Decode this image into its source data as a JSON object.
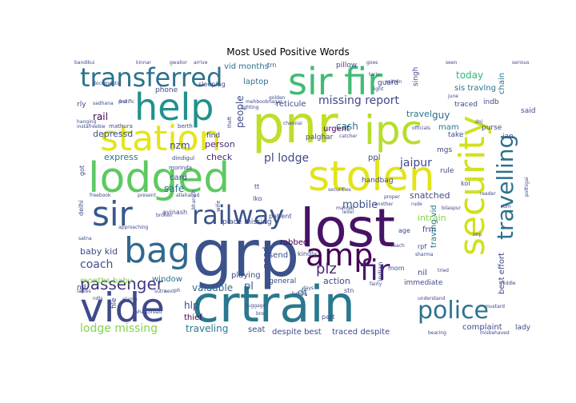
{
  "chart_data": {
    "type": "wordcloud",
    "title": "Most Used Positive Words",
    "background": "#ffffff",
    "colormap": "viridis",
    "words": [
      {
        "text": "grp",
        "size": 80,
        "color": "#3b528b"
      },
      {
        "text": "lost",
        "size": 66,
        "color": "#471365"
      },
      {
        "text": "pnr",
        "size": 64,
        "color": "#bddf26"
      },
      {
        "text": "crtrain",
        "size": 62,
        "color": "#2a788e"
      },
      {
        "text": "lodged",
        "size": 52,
        "color": "#5ec962"
      },
      {
        "text": "stolen",
        "size": 52,
        "color": "#e2e418"
      },
      {
        "text": "vide",
        "size": 50,
        "color": "#3e4a89"
      },
      {
        "text": "ipc",
        "size": 50,
        "color": "#b5de2b"
      },
      {
        "text": "help",
        "size": 46,
        "color": "#21918c"
      },
      {
        "text": "sir fir",
        "size": 46,
        "color": "#3fbc73"
      },
      {
        "text": "station",
        "size": 44,
        "color": "#e5e419"
      },
      {
        "text": "security",
        "size": 44,
        "color": "#d0e11c"
      },
      {
        "text": "bag",
        "size": 44,
        "color": "#31688e"
      },
      {
        "text": "sir",
        "size": 42,
        "color": "#38588c"
      },
      {
        "text": "amp",
        "size": 38,
        "color": "#440154"
      },
      {
        "text": "fir",
        "size": 36,
        "color": "#481a6c"
      },
      {
        "text": "transferred",
        "size": 32,
        "color": "#2c728e"
      },
      {
        "text": "railway",
        "size": 32,
        "color": "#3b528b"
      },
      {
        "text": "police",
        "size": 30,
        "color": "#2c728e"
      },
      {
        "text": "travelling",
        "size": 28,
        "color": "#2d708e"
      },
      {
        "text": "passenger",
        "size": 20,
        "color": "#453781"
      },
      {
        "text": "plz",
        "size": 18,
        "color": "#482878"
      },
      {
        "text": "missing report",
        "size": 14,
        "color": "#404688"
      },
      {
        "text": "coach",
        "size": 14,
        "color": "#3b528b"
      },
      {
        "text": "pl lodge",
        "size": 14,
        "color": "#3e4a89"
      },
      {
        "text": "jaipur",
        "size": 14,
        "color": "#3e4a89"
      },
      {
        "text": "mobile",
        "size": 13,
        "color": "#3b528b"
      },
      {
        "text": "lodge missing",
        "size": 14,
        "color": "#84d44b"
      },
      {
        "text": "today",
        "size": 12,
        "color": "#35b779"
      },
      {
        "text": "valuable",
        "size": 12,
        "color": "#31688e"
      },
      {
        "text": "hlp",
        "size": 12,
        "color": "#3e4a89"
      },
      {
        "text": "pl",
        "size": 13,
        "color": "#38588c"
      },
      {
        "text": "traveling",
        "size": 12,
        "color": "#2a788e"
      },
      {
        "text": "vid months",
        "size": 10,
        "color": "#2c728e"
      },
      {
        "text": "laptop",
        "size": 10,
        "color": "#2c728e"
      },
      {
        "text": "reticule",
        "size": 10,
        "color": "#3e4a89"
      },
      {
        "text": "people",
        "size": 12,
        "color": "#3e4a89"
      },
      {
        "text": "rail",
        "size": 12,
        "color": "#440154"
      },
      {
        "text": "cash",
        "size": 12,
        "color": "#2a788e"
      },
      {
        "text": "travel",
        "size": 11,
        "color": "#2c728e"
      },
      {
        "text": "guy",
        "size": 12,
        "color": "#31688e"
      },
      {
        "text": "mam",
        "size": 10,
        "color": "#2a788e"
      },
      {
        "text": "nzm",
        "size": 12,
        "color": "#3e4a89"
      },
      {
        "text": "express",
        "size": 11,
        "color": "#2c728e"
      },
      {
        "text": "depressd",
        "size": 11,
        "color": "#3b528b"
      },
      {
        "text": "person",
        "size": 11,
        "color": "#482878"
      },
      {
        "text": "check",
        "size": 11,
        "color": "#482878"
      },
      {
        "text": "card",
        "size": 10,
        "color": "#3b528b"
      },
      {
        "text": "safe",
        "size": 12,
        "color": "#2c728e"
      },
      {
        "text": "baby kid",
        "size": 11,
        "color": "#3e4a89"
      },
      {
        "text": "months baby",
        "size": 10,
        "color": "#84d44b"
      },
      {
        "text": "window",
        "size": 10,
        "color": "#2c728e"
      },
      {
        "text": "need",
        "size": 11,
        "color": "#3e4a89"
      },
      {
        "text": "send",
        "size": 10,
        "color": "#3e4a89"
      },
      {
        "text": "robbed",
        "size": 10,
        "color": "#440154"
      },
      {
        "text": "intrain",
        "size": 11,
        "color": "#84d44b"
      },
      {
        "text": "frm",
        "size": 10,
        "color": "#3e4a89"
      },
      {
        "text": "snatched",
        "size": 11,
        "color": "#3e4a89"
      },
      {
        "text": "dt",
        "size": 12,
        "color": "#2c728e"
      },
      {
        "text": "action",
        "size": 11,
        "color": "#3e4a89"
      },
      {
        "text": "seat",
        "size": 10,
        "color": "#3e4a89"
      },
      {
        "text": "despite best",
        "size": 10,
        "color": "#3e4a89"
      },
      {
        "text": "traced despite",
        "size": 10,
        "color": "#3e4a89"
      },
      {
        "text": "complaint",
        "size": 10,
        "color": "#3e4a89"
      },
      {
        "text": "best effort",
        "size": 10,
        "color": "#3e4a89"
      },
      {
        "text": "playing",
        "size": 10,
        "color": "#3e4a89"
      },
      {
        "text": "thief",
        "size": 10,
        "color": "#440154"
      },
      {
        "text": "sis travlng",
        "size": 10,
        "color": "#2c728e"
      },
      {
        "text": "chain",
        "size": 10,
        "color": "#2c728e"
      },
      {
        "text": "urgent",
        "size": 10,
        "color": "#440154"
      },
      {
        "text": "palghar",
        "size": 9,
        "color": "#3e4a89"
      },
      {
        "text": "purse",
        "size": 9,
        "color": "#3e4a89"
      },
      {
        "text": "handbag",
        "size": 9,
        "color": "#3e4a89"
      },
      {
        "text": "rule",
        "size": 9,
        "color": "#3e4a89"
      },
      {
        "text": "ppl",
        "size": 10,
        "color": "#3e4a89"
      },
      {
        "text": "immediate",
        "size": 9,
        "color": "#3e4a89"
      },
      {
        "text": "nil",
        "size": 10,
        "color": "#3e4a89"
      },
      {
        "text": "traving vid",
        "size": 10,
        "color": "#2c728e"
      },
      {
        "text": "general",
        "size": 9,
        "color": "#3e4a89"
      },
      {
        "text": "place missing",
        "size": 9,
        "color": "#3e4a89"
      },
      {
        "text": "phone",
        "size": 9,
        "color": "#3e4a89"
      },
      {
        "text": "find",
        "size": 9,
        "color": "#3e4a89"
      },
      {
        "text": "guard",
        "size": 9,
        "color": "#3e4a89"
      },
      {
        "text": "indb",
        "size": 9,
        "color": "#3e4a89"
      },
      {
        "text": "jan",
        "size": 9,
        "color": "#3e4a89"
      },
      {
        "text": "said",
        "size": 9,
        "color": "#3e4a89"
      },
      {
        "text": "take",
        "size": 9,
        "color": "#3e4a89"
      },
      {
        "text": "traced",
        "size": 9,
        "color": "#3e4a89"
      },
      {
        "text": "lady",
        "size": 9,
        "color": "#3e4a89"
      },
      {
        "text": "pillow",
        "size": 9,
        "color": "#3e4a89"
      },
      {
        "text": "singh",
        "size": 9,
        "color": "#3e4a89"
      },
      {
        "text": "file",
        "size": 9,
        "color": "#3e4a89"
      },
      {
        "text": "nd",
        "size": 9,
        "color": "#3e4a89"
      },
      {
        "text": "rly",
        "size": 9,
        "color": "#3e4a89"
      },
      {
        "text": "mgs",
        "size": 9,
        "color": "#3e4a89"
      },
      {
        "text": "patient",
        "size": 8,
        "color": "#3e4a89"
      },
      {
        "text": "lko",
        "size": 8,
        "color": "#3e4a89"
      },
      {
        "text": "tt",
        "size": 8,
        "color": "#3e4a89"
      },
      {
        "text": "got",
        "size": 8,
        "color": "#3e4a89"
      },
      {
        "text": "delhi",
        "size": 8,
        "color": "#3e4a89"
      },
      {
        "text": "kindly",
        "size": 8,
        "color": "#3e4a89"
      },
      {
        "text": "stn",
        "size": 8,
        "color": "#3e4a89"
      },
      {
        "text": "avinash",
        "size": 8,
        "color": "#3e4a89"
      },
      {
        "text": "part",
        "size": 8,
        "color": "#3e4a89"
      },
      {
        "text": "mom",
        "size": 8,
        "color": "#3e4a89"
      },
      {
        "text": "rpf",
        "size": 8,
        "color": "#3e4a89"
      },
      {
        "text": "indian",
        "size": 8,
        "color": "#3e4a89"
      },
      {
        "text": "age",
        "size": 8,
        "color": "#3e4a89"
      },
      {
        "text": "sleeping",
        "size": 8,
        "color": "#3e4a89"
      },
      {
        "text": "trn",
        "size": 8,
        "color": "#3e4a89"
      },
      {
        "text": "kol",
        "size": 8,
        "color": "#3e4a89"
      },
      {
        "text": "dindigul",
        "size": 7,
        "color": "#3e4a89"
      },
      {
        "text": "morinda",
        "size": 7,
        "color": "#3e4a89"
      },
      {
        "text": "berth",
        "size": 7,
        "color": "#3e4a89"
      },
      {
        "text": "mathura",
        "size": 7,
        "color": "#3e4a89"
      },
      {
        "text": "bandikui",
        "size": 6,
        "color": "#3e4a89"
      },
      {
        "text": "kinnar",
        "size": 6,
        "color": "#3e4a89"
      },
      {
        "text": "gwalior",
        "size": 6,
        "color": "#3e4a89"
      },
      {
        "text": "arrive",
        "size": 6,
        "color": "#3e4a89"
      },
      {
        "text": "documents",
        "size": 6,
        "color": "#3e4a89"
      },
      {
        "text": "goes",
        "size": 6,
        "color": "#3e4a89"
      },
      {
        "text": "seen",
        "size": 6,
        "color": "#3e4a89"
      },
      {
        "text": "serious",
        "size": 6,
        "color": "#3e4a89"
      },
      {
        "text": "tarin",
        "size": 6,
        "color": "#3e4a89"
      },
      {
        "text": "light",
        "size": 6,
        "color": "#3e4a89"
      },
      {
        "text": "written",
        "size": 6,
        "color": "#3e4a89"
      },
      {
        "text": "june",
        "size": 6,
        "color": "#3e4a89"
      },
      {
        "text": "mehboobnagar",
        "size": 6,
        "color": "#3e4a89"
      },
      {
        "text": "lighting",
        "size": 6,
        "color": "#3e4a89"
      },
      {
        "text": "golden",
        "size": 6,
        "color": "#3e4a89"
      },
      {
        "text": "hanging",
        "size": 6,
        "color": "#3e4a89"
      },
      {
        "text": "instafreebie",
        "size": 6,
        "color": "#3e4a89"
      },
      {
        "text": "prolific",
        "size": 6,
        "color": "#3e4a89"
      },
      {
        "text": "chennai",
        "size": 6,
        "color": "#3e4a89"
      },
      {
        "text": "catcher",
        "size": 6,
        "color": "#3e4a89"
      },
      {
        "text": "officials",
        "size": 6,
        "color": "#3e4a89"
      },
      {
        "text": "securities",
        "size": 6,
        "color": "#3e4a89"
      },
      {
        "text": "another",
        "size": 6,
        "color": "#3e4a89"
      },
      {
        "text": "rude",
        "size": 6,
        "color": "#3e4a89"
      },
      {
        "text": "mangal",
        "size": 6,
        "color": "#3e4a89"
      },
      {
        "text": "level",
        "size": 6,
        "color": "#3e4a89"
      },
      {
        "text": "proper",
        "size": 6,
        "color": "#3e4a89"
      },
      {
        "text": "reader",
        "size": 6,
        "color": "#3e4a89"
      },
      {
        "text": "freebook",
        "size": 6,
        "color": "#3e4a89"
      },
      {
        "text": "present",
        "size": 6,
        "color": "#3e4a89"
      },
      {
        "text": "allahabad",
        "size": 6,
        "color": "#3e4a89"
      },
      {
        "text": "bharuch",
        "size": 6,
        "color": "#3e4a89"
      },
      {
        "text": "broken",
        "size": 6,
        "color": "#3e4a89"
      },
      {
        "text": "satna",
        "size": 6,
        "color": "#3e4a89"
      },
      {
        "text": "approaching",
        "size": 6,
        "color": "#3e4a89"
      },
      {
        "text": "bilaspur",
        "size": 6,
        "color": "#3e4a89"
      },
      {
        "text": "reach",
        "size": 6,
        "color": "#3e4a89"
      },
      {
        "text": "sharma",
        "size": 6,
        "color": "#3e4a89"
      },
      {
        "text": "luggage",
        "size": 6,
        "color": "#3e4a89"
      },
      {
        "text": "tundla",
        "size": 6,
        "color": "#3e4a89"
      },
      {
        "text": "bro",
        "size": 6,
        "color": "#3e4a89"
      },
      {
        "text": "days",
        "size": 6,
        "color": "#3e4a89"
      },
      {
        "text": "understand",
        "size": 6,
        "color": "#3e4a89"
      },
      {
        "text": "mustard",
        "size": 6,
        "color": "#3e4a89"
      },
      {
        "text": "middle",
        "size": 6,
        "color": "#3e4a89"
      },
      {
        "text": "fairly",
        "size": 6,
        "color": "#3e4a89"
      },
      {
        "text": "ladies",
        "size": 6,
        "color": "#3e4a89"
      },
      {
        "text": "sutra",
        "size": 6,
        "color": "#3e4a89"
      },
      {
        "text": "whattoread",
        "size": 6,
        "color": "#3e4a89"
      },
      {
        "text": "bearing",
        "size": 6,
        "color": "#3e4a89"
      },
      {
        "text": "misbehaved",
        "size": 6,
        "color": "#3e4a89"
      },
      {
        "text": "pothigai",
        "size": 6,
        "color": "#3e4a89"
      },
      {
        "text": "frst",
        "size": 6,
        "color": "#3e4a89"
      },
      {
        "text": "sadhana",
        "size": 6,
        "color": "#3e4a89"
      },
      {
        "text": "ndls",
        "size": 6,
        "color": "#3e4a89"
      },
      {
        "text": "elama",
        "size": 6,
        "color": "#3e4a89"
      },
      {
        "text": "next",
        "size": 6,
        "color": "#3e4a89"
      },
      {
        "text": "ph",
        "size": 6,
        "color": "#3e4a89"
      },
      {
        "text": "imp",
        "size": 6,
        "color": "#3e4a89"
      },
      {
        "text": "sum",
        "size": 6,
        "color": "#3e4a89"
      },
      {
        "text": "doj",
        "size": 6,
        "color": "#3e4a89"
      },
      {
        "text": "tried",
        "size": 6,
        "color": "#3e4a89"
      },
      {
        "text": "wife",
        "size": 7,
        "color": "#3e4a89"
      },
      {
        "text": "theft",
        "size": 6,
        "color": "#3e4a89"
      }
    ]
  }
}
